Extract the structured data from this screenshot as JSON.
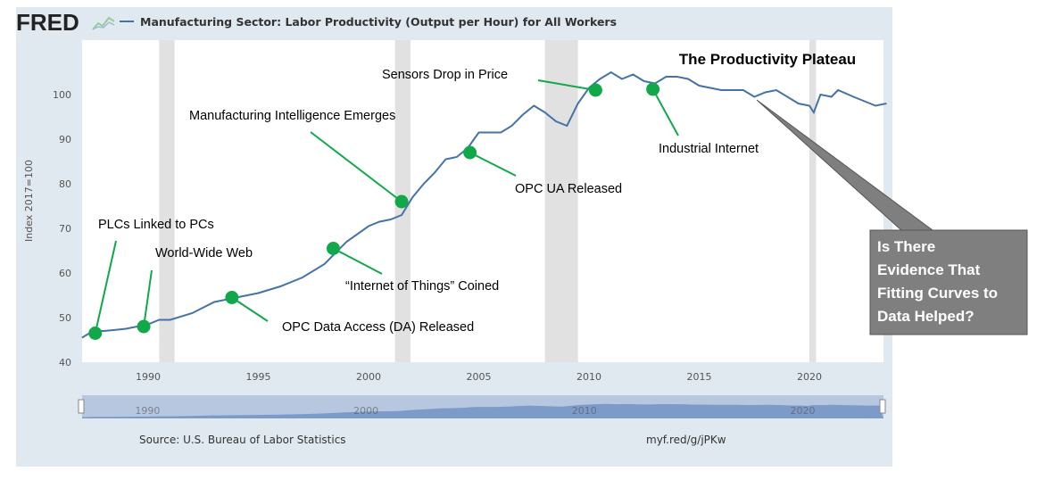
{
  "header": {
    "logo": "FRED",
    "series_title": "Manufacturing Sector: Labor Productivity (Output per Hour) for All Workers"
  },
  "footer": {
    "source": "Source: U.S. Bureau of Labor Statistics",
    "link": "myf.red/g/jPKw"
  },
  "colors": {
    "line": "#4572a7",
    "panel": "#e1e9f0",
    "recession": "#e1e1e1",
    "dot": "#11a84a",
    "callout": "#7f7f7f"
  },
  "chart_data": {
    "type": "line",
    "title": "The Productivity Plateau",
    "ylabel": "Index 2017=100",
    "xlim": [
      1987,
      2023.7
    ],
    "ylim": [
      40,
      110
    ],
    "yticks": [
      40,
      50,
      60,
      70,
      80,
      90,
      100
    ],
    "xticks": [
      1990,
      1995,
      2000,
      2005,
      2010,
      2015,
      2020
    ],
    "navigator_ticks": [
      "1990",
      "2000",
      "2010",
      "2020"
    ],
    "recessions": [
      [
        1990.5,
        1991.2
      ],
      [
        2001.2,
        2001.9
      ],
      [
        2008,
        2009.5
      ],
      [
        2020,
        2020.3
      ]
    ],
    "series": [
      {
        "name": "Manufacturing Sector: Labor Productivity",
        "x": [
          1987,
          1987.5,
          1988,
          1989,
          1990,
          1990.5,
          1991,
          1992,
          1993,
          1994,
          1995,
          1996,
          1997,
          1998,
          1998.5,
          1999,
          2000,
          2000.5,
          2001,
          2001.5,
          2002,
          2002.5,
          2003,
          2003.5,
          2004,
          2004.5,
          2005,
          2006,
          2006.5,
          2007,
          2007.5,
          2008,
          2008.5,
          2009,
          2009.5,
          2010,
          2010.5,
          2011,
          2011.5,
          2012,
          2012.5,
          2013,
          2013.5,
          2014,
          2014.5,
          2015,
          2016,
          2017,
          2017.5,
          2018,
          2018.5,
          2019,
          2019.5,
          2020,
          2020.2,
          2020.5,
          2021,
          2021.3,
          2022,
          2022.5,
          2023,
          2023.5
        ],
        "y": [
          45.5,
          47,
          47,
          47.5,
          48.5,
          49.5,
          49.5,
          51,
          53.5,
          54.5,
          55.5,
          57,
          59,
          62,
          64.5,
          67,
          70.5,
          71.5,
          72,
          73,
          77,
          80,
          82.5,
          85.5,
          86,
          88,
          91.5,
          91.5,
          93,
          95.5,
          97.5,
          96,
          94,
          93,
          98,
          101.5,
          103.5,
          105,
          103.5,
          104.5,
          103,
          102.5,
          104,
          104,
          103.5,
          102,
          101,
          101,
          99.5,
          100.5,
          101,
          99.5,
          98,
          97.5,
          96,
          100,
          99.5,
          101,
          99.5,
          98.5,
          97.5,
          98
        ]
      }
    ],
    "annotations": [
      {
        "text": "PLCs Linked to PCs",
        "x": 1987.6,
        "y": 46.5
      },
      {
        "text": "World-Wide Web",
        "x": 1989.8,
        "y": 48
      },
      {
        "text": "OPC Data Access (DA) Released",
        "x": 1993.8,
        "y": 54.5
      },
      {
        "text": "“Internet of Things” Coined",
        "x": 1998.4,
        "y": 65.5
      },
      {
        "text": "Manufacturing Intelligence Emerges",
        "x": 2001.5,
        "y": 76
      },
      {
        "text": "OPC UA Released",
        "x": 2004.6,
        "y": 87
      },
      {
        "text": "Sensors Drop in Price",
        "x": 2010.3,
        "y": 101
      },
      {
        "text": "Industrial Internet",
        "x": 2012.9,
        "y": 101.2
      }
    ],
    "callout": [
      "Is There",
      "Evidence That",
      "Fitting Curves to",
      "Data Helped?"
    ]
  }
}
